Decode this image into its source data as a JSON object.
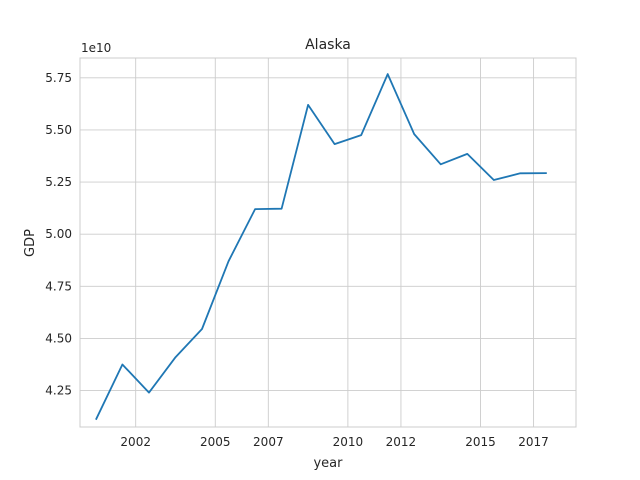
{
  "chart_data": {
    "type": "line",
    "title": "Alaska",
    "xlabel": "year",
    "ylabel": "GDP",
    "y_offset_label": "1e10",
    "x": [
      2000.5,
      2001.5,
      2002.5,
      2003.5,
      2004.5,
      2005.5,
      2006.5,
      2007.5,
      2008.5,
      2009.5,
      2010.5,
      2011.5,
      2012.5,
      2013.5,
      2014.5,
      2015.5,
      2016.5,
      2017.5
    ],
    "series": [
      {
        "name": "",
        "color": "#1f77b4",
        "values": [
          4.11,
          4.375,
          4.24,
          4.41,
          4.545,
          4.87,
          5.12,
          5.122,
          5.62,
          5.432,
          5.475,
          5.768,
          5.48,
          5.335,
          5.385,
          5.26,
          5.292,
          5.293
        ]
      }
    ],
    "x_ticks": [
      2002,
      2005,
      2007,
      2010,
      2012,
      2015,
      2017
    ],
    "x_tick_labels": [
      "2002",
      "2005",
      "2007",
      "2010",
      "2012",
      "2015",
      "2017"
    ],
    "y_ticks": [
      4.25,
      4.5,
      4.75,
      5.0,
      5.25,
      5.5,
      5.75
    ],
    "y_tick_labels": [
      "4.25",
      "4.50",
      "4.75",
      "5.00",
      "5.25",
      "5.50",
      "5.75"
    ],
    "xlim": [
      1999.9,
      2018.6
    ],
    "ylim": [
      4.075,
      5.845
    ],
    "grid": true,
    "style": "whitegrid"
  }
}
